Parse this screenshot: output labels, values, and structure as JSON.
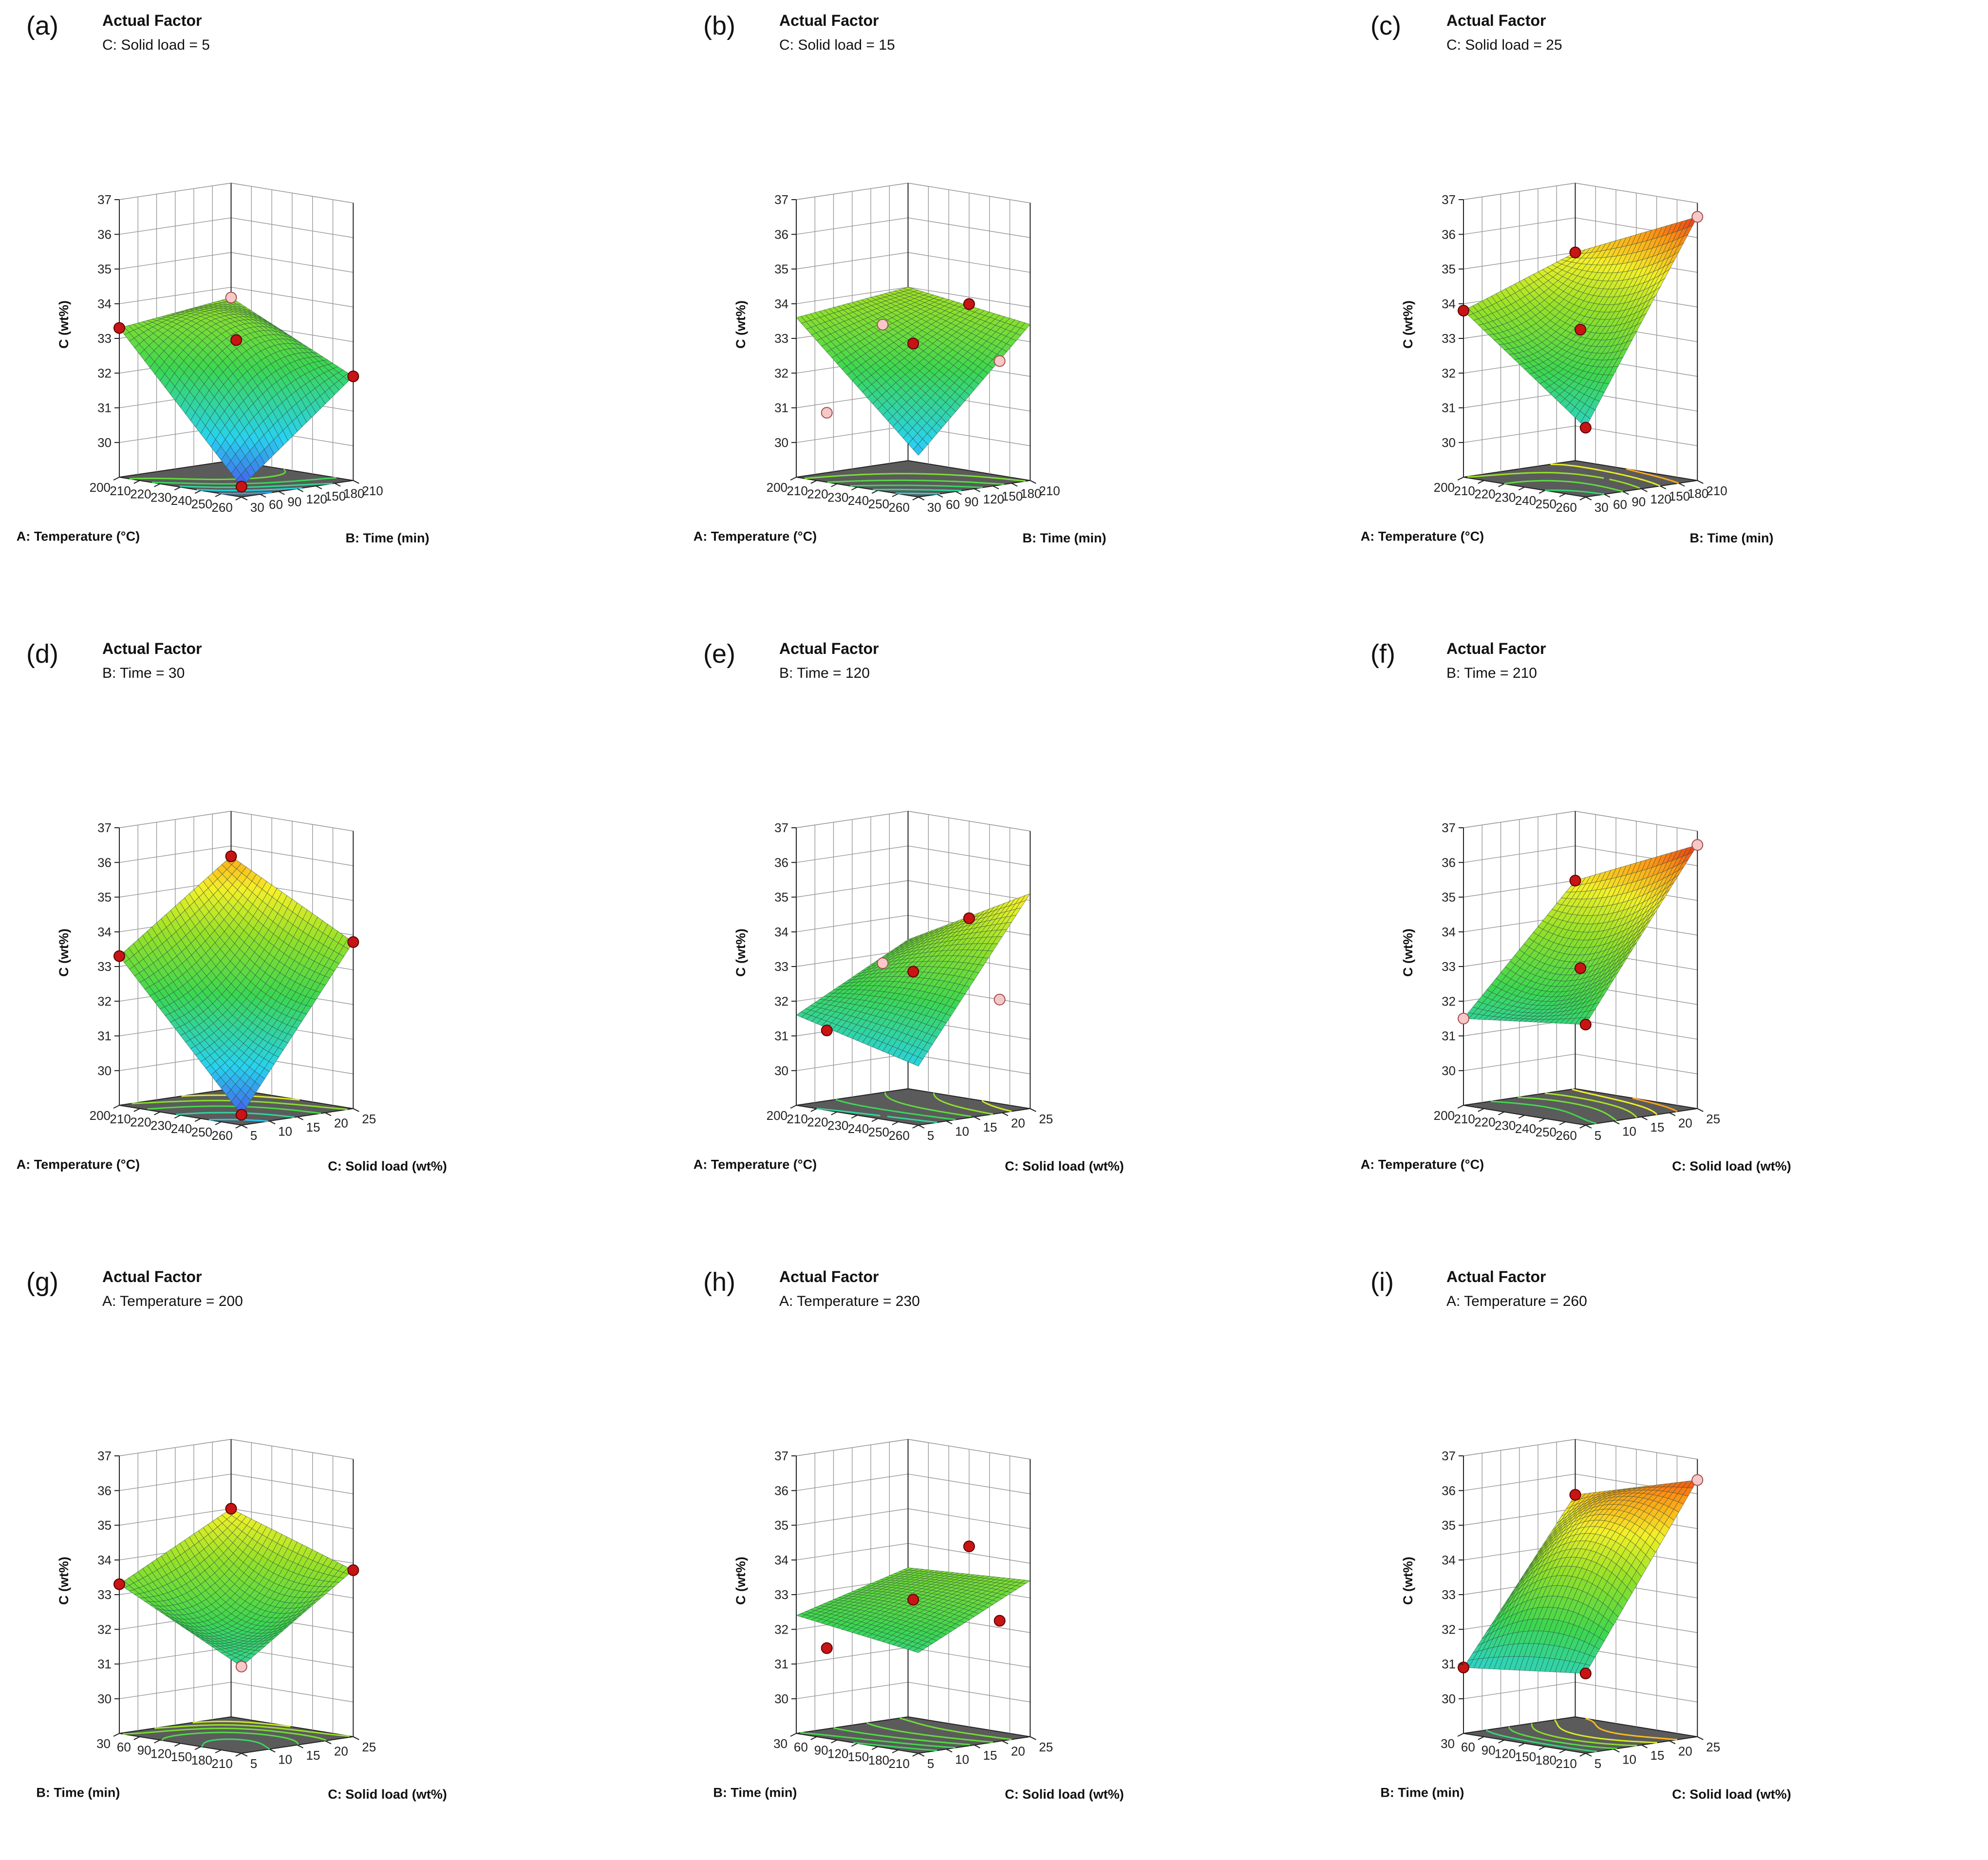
{
  "chart_data": [
    {
      "id": "a",
      "type": "surface",
      "panel_label": "(a)",
      "actual_factor_title": "Actual Factor",
      "actual_factor": "C: Solid load = 5",
      "zlabel": "C (wt%)",
      "z_ticks": [
        "30",
        "31",
        "32",
        "33",
        "34",
        "35",
        "36",
        "37"
      ],
      "zlim": [
        29,
        37
      ],
      "xlabel": "A: Temperature (°C)",
      "x_ticks": [
        "200",
        "210",
        "220",
        "230",
        "240",
        "250",
        "260"
      ],
      "xlim": [
        200,
        260
      ],
      "ylabel": "B: Time (min)",
      "y_ticks": [
        "30",
        "60",
        "90",
        "120",
        "150",
        "180",
        "210"
      ],
      "ylim": [
        30,
        210
      ],
      "corners": {
        "back": 33.7,
        "left": 33.3,
        "right": 32.0,
        "front": 29.3
      },
      "center": 33.0,
      "colormap_range": [
        29.3,
        36.8
      ],
      "points": [
        {
          "x": 200,
          "y": 30,
          "z": 33.3,
          "above": true
        },
        {
          "x": 260,
          "y": 210,
          "z": 32.0,
          "above": true
        },
        {
          "x": 230,
          "y": 120,
          "z": 33.0,
          "above": true
        },
        {
          "x": 260,
          "y": 30,
          "z": 29.3,
          "above": true
        },
        {
          "x": 200,
          "y": 210,
          "z": 33.7,
          "above": false
        }
      ]
    },
    {
      "id": "b",
      "type": "surface",
      "panel_label": "(b)",
      "actual_factor_title": "Actual Factor",
      "actual_factor": "C: Solid load = 15",
      "zlabel": "C (wt%)",
      "z_ticks": [
        "30",
        "31",
        "32",
        "33",
        "34",
        "35",
        "36",
        "37"
      ],
      "zlim": [
        29,
        37
      ],
      "xlabel": "A: Temperature (°C)",
      "x_ticks": [
        "200",
        "210",
        "220",
        "230",
        "240",
        "250",
        "260"
      ],
      "xlim": [
        200,
        260
      ],
      "ylabel": "B: Time (min)",
      "y_ticks": [
        "30",
        "60",
        "90",
        "120",
        "150",
        "180",
        "210"
      ],
      "ylim": [
        30,
        210
      ],
      "corners": {
        "back": 34.0,
        "left": 33.6,
        "right": 33.5,
        "front": 30.2
      },
      "center": 32.9,
      "colormap_range": [
        29.3,
        36.8
      ],
      "points": [
        {
          "x": 230,
          "y": 120,
          "z": 32.9,
          "above": true
        },
        {
          "x": 230,
          "y": 210,
          "z": 33.8,
          "above": true
        },
        {
          "x": 215,
          "y": 30,
          "z": 31.0,
          "above": false
        },
        {
          "x": 245,
          "y": 210,
          "z": 32.3,
          "above": false
        },
        {
          "x": 215,
          "y": 120,
          "z": 33.3,
          "above": false
        }
      ]
    },
    {
      "id": "c",
      "type": "surface",
      "panel_label": "(c)",
      "actual_factor_title": "Actual Factor",
      "actual_factor": "C: Solid load = 25",
      "zlabel": "C (wt%)",
      "z_ticks": [
        "30",
        "31",
        "32",
        "33",
        "34",
        "35",
        "36",
        "37"
      ],
      "zlim": [
        29,
        37
      ],
      "xlabel": "A: Temperature (°C)",
      "x_ticks": [
        "200",
        "210",
        "220",
        "230",
        "240",
        "250",
        "260"
      ],
      "xlim": [
        200,
        260
      ],
      "ylabel": "B: Time (min)",
      "y_ticks": [
        "30",
        "60",
        "90",
        "120",
        "150",
        "180",
        "210"
      ],
      "ylim": [
        30,
        210
      ],
      "corners": {
        "back": 35.0,
        "left": 33.8,
        "right": 36.6,
        "front": 31.0
      },
      "center": 33.3,
      "colormap_range": [
        29.3,
        36.8
      ],
      "points": [
        {
          "x": 200,
          "y": 210,
          "z": 35.0,
          "above": true
        },
        {
          "x": 230,
          "y": 120,
          "z": 33.3,
          "above": true
        },
        {
          "x": 200,
          "y": 30,
          "z": 33.8,
          "above": true
        },
        {
          "x": 260,
          "y": 30,
          "z": 31.0,
          "above": true
        },
        {
          "x": 260,
          "y": 210,
          "z": 36.6,
          "above": false
        }
      ]
    },
    {
      "id": "d",
      "type": "surface",
      "panel_label": "(d)",
      "actual_factor_title": "Actual Factor",
      "actual_factor": "B: Time = 30",
      "zlabel": "C (wt%)",
      "z_ticks": [
        "30",
        "31",
        "32",
        "33",
        "34",
        "35",
        "36",
        "37"
      ],
      "zlim": [
        29,
        37
      ],
      "xlabel": "A: Temperature (°C)",
      "x_ticks": [
        "200",
        "210",
        "220",
        "230",
        "240",
        "250",
        "260"
      ],
      "xlim": [
        200,
        260
      ],
      "ylabel": "C: Solid load (wt%)",
      "y_ticks": [
        "5",
        "10",
        "15",
        "20",
        "25"
      ],
      "ylim": [
        5,
        25
      ],
      "corners": {
        "back": 35.7,
        "left": 33.3,
        "right": 33.8,
        "front": 29.3
      },
      "center": 32.4,
      "colormap_range": [
        29.3,
        36.8
      ],
      "points": [
        {
          "x": 200,
          "y": 25,
          "z": 35.7,
          "above": true
        },
        {
          "x": 200,
          "y": 5,
          "z": 33.3,
          "above": true
        },
        {
          "x": 260,
          "y": 25,
          "z": 33.8,
          "above": true
        },
        {
          "x": 260,
          "y": 5,
          "z": 29.3,
          "above": true
        }
      ]
    },
    {
      "id": "e",
      "type": "surface",
      "panel_label": "(e)",
      "actual_factor_title": "Actual Factor",
      "actual_factor": "B: Time = 120",
      "zlabel": "C (wt%)",
      "z_ticks": [
        "30",
        "31",
        "32",
        "33",
        "34",
        "35",
        "36",
        "37"
      ],
      "zlim": [
        29,
        37
      ],
      "xlabel": "A: Temperature (°C)",
      "x_ticks": [
        "200",
        "210",
        "220",
        "230",
        "240",
        "250",
        "260"
      ],
      "xlim": [
        200,
        260
      ],
      "ylabel": "C: Solid load (wt%)",
      "y_ticks": [
        "5",
        "10",
        "15",
        "20",
        "25"
      ],
      "ylim": [
        5,
        25
      ],
      "corners": {
        "back": 33.3,
        "left": 31.6,
        "right": 35.2,
        "front": 30.7
      },
      "center": 32.9,
      "colormap_range": [
        29.3,
        36.8
      ],
      "points": [
        {
          "x": 230,
          "y": 15,
          "z": 32.9,
          "above": true
        },
        {
          "x": 230,
          "y": 25,
          "z": 34.2,
          "above": true
        },
        {
          "x": 215,
          "y": 5,
          "z": 31.3,
          "above": true
        },
        {
          "x": 245,
          "y": 25,
          "z": 32.0,
          "above": false
        },
        {
          "x": 215,
          "y": 15,
          "z": 33.0,
          "above": false
        }
      ]
    },
    {
      "id": "f",
      "type": "surface",
      "panel_label": "(f)",
      "actual_factor_title": "Actual Factor",
      "actual_factor": "B: Time = 210",
      "zlabel": "C (wt%)",
      "z_ticks": [
        "30",
        "31",
        "32",
        "33",
        "34",
        "35",
        "36",
        "37"
      ],
      "zlim": [
        29,
        37
      ],
      "xlabel": "A: Temperature (°C)",
      "x_ticks": [
        "200",
        "210",
        "220",
        "230",
        "240",
        "250",
        "260"
      ],
      "xlim": [
        200,
        260
      ],
      "ylabel": "C: Solid load (wt%)",
      "y_ticks": [
        "5",
        "10",
        "15",
        "20",
        "25"
      ],
      "ylim": [
        5,
        25
      ],
      "corners": {
        "back": 35.0,
        "left": 31.5,
        "right": 36.6,
        "front": 31.9
      },
      "center": 33.0,
      "colormap_range": [
        29.3,
        36.8
      ],
      "points": [
        {
          "x": 200,
          "y": 25,
          "z": 35.0,
          "above": true
        },
        {
          "x": 230,
          "y": 15,
          "z": 33.0,
          "above": true
        },
        {
          "x": 260,
          "y": 5,
          "z": 31.9,
          "above": true
        },
        {
          "x": 200,
          "y": 5,
          "z": 31.5,
          "above": false
        },
        {
          "x": 260,
          "y": 25,
          "z": 36.6,
          "above": false
        }
      ]
    },
    {
      "id": "g",
      "type": "surface",
      "panel_label": "(g)",
      "actual_factor_title": "Actual Factor",
      "actual_factor": "A: Temperature = 200",
      "zlabel": "C (wt%)",
      "z_ticks": [
        "30",
        "31",
        "32",
        "33",
        "34",
        "35",
        "36",
        "37"
      ],
      "zlim": [
        29,
        37
      ],
      "xlabel": "B: Time (min)",
      "x_ticks": [
        "30",
        "60",
        "90",
        "120",
        "150",
        "180",
        "210"
      ],
      "xlim": [
        30,
        210
      ],
      "ylabel": "C: Solid load (wt%)",
      "y_ticks": [
        "5",
        "10",
        "15",
        "20",
        "25"
      ],
      "ylim": [
        5,
        25
      ],
      "corners": {
        "back": 35.0,
        "left": 33.3,
        "right": 33.8,
        "front": 31.5
      },
      "center": 32.4,
      "colormap_range": [
        29.3,
        36.8
      ],
      "points": [
        {
          "x": 30,
          "y": 25,
          "z": 35.0,
          "above": true
        },
        {
          "x": 30,
          "y": 5,
          "z": 33.3,
          "above": true
        },
        {
          "x": 210,
          "y": 25,
          "z": 33.8,
          "above": true
        },
        {
          "x": 210,
          "y": 5,
          "z": 31.5,
          "above": false
        }
      ]
    },
    {
      "id": "h",
      "type": "surface",
      "panel_label": "(h)",
      "actual_factor_title": "Actual Factor",
      "actual_factor": "A: Temperature = 230",
      "zlabel": "C (wt%)",
      "z_ticks": [
        "30",
        "31",
        "32",
        "33",
        "34",
        "35",
        "36",
        "37"
      ],
      "zlim": [
        29,
        37
      ],
      "xlabel": "B: Time (min)",
      "x_ticks": [
        "30",
        "60",
        "90",
        "120",
        "150",
        "180",
        "210"
      ],
      "xlim": [
        30,
        210
      ],
      "ylabel": "C: Solid load (wt%)",
      "y_ticks": [
        "5",
        "10",
        "15",
        "20",
        "25"
      ],
      "ylim": [
        5,
        25
      ],
      "corners": {
        "back": 33.3,
        "left": 32.4,
        "right": 33.5,
        "front": 31.9
      },
      "center": 32.9,
      "colormap_range": [
        29.3,
        36.8
      ],
      "points": [
        {
          "x": 120,
          "y": 15,
          "z": 32.9,
          "above": true
        },
        {
          "x": 120,
          "y": 25,
          "z": 34.2,
          "above": true
        },
        {
          "x": 75,
          "y": 5,
          "z": 31.6,
          "above": true
        },
        {
          "x": 165,
          "y": 25,
          "z": 32.2,
          "above": true
        }
      ]
    },
    {
      "id": "i",
      "type": "surface",
      "panel_label": "(i)",
      "actual_factor_title": "Actual Factor",
      "actual_factor": "A: Temperature = 260",
      "zlabel": "C (wt%)",
      "z_ticks": [
        "30",
        "31",
        "32",
        "33",
        "34",
        "35",
        "36",
        "37"
      ],
      "zlim": [
        29,
        37
      ],
      "xlabel": "B: Time (min)",
      "x_ticks": [
        "30",
        "60",
        "90",
        "120",
        "150",
        "180",
        "210"
      ],
      "xlim": [
        30,
        210
      ],
      "ylabel": "C: Solid load (wt%)",
      "y_ticks": [
        "5",
        "10",
        "15",
        "20",
        "25"
      ],
      "ylim": [
        5,
        25
      ],
      "corners": {
        "back": 35.4,
        "left": 30.9,
        "right": 36.4,
        "front": 31.3
      },
      "center": 34.6,
      "colormap_range": [
        29.3,
        36.8
      ],
      "points": [
        {
          "x": 30,
          "y": 25,
          "z": 35.4,
          "above": true
        },
        {
          "x": 30,
          "y": 5,
          "z": 30.9,
          "above": true
        },
        {
          "x": 210,
          "y": 5,
          "z": 31.3,
          "above": true
        },
        {
          "x": 210,
          "y": 25,
          "z": 36.4,
          "above": false
        }
      ]
    }
  ]
}
